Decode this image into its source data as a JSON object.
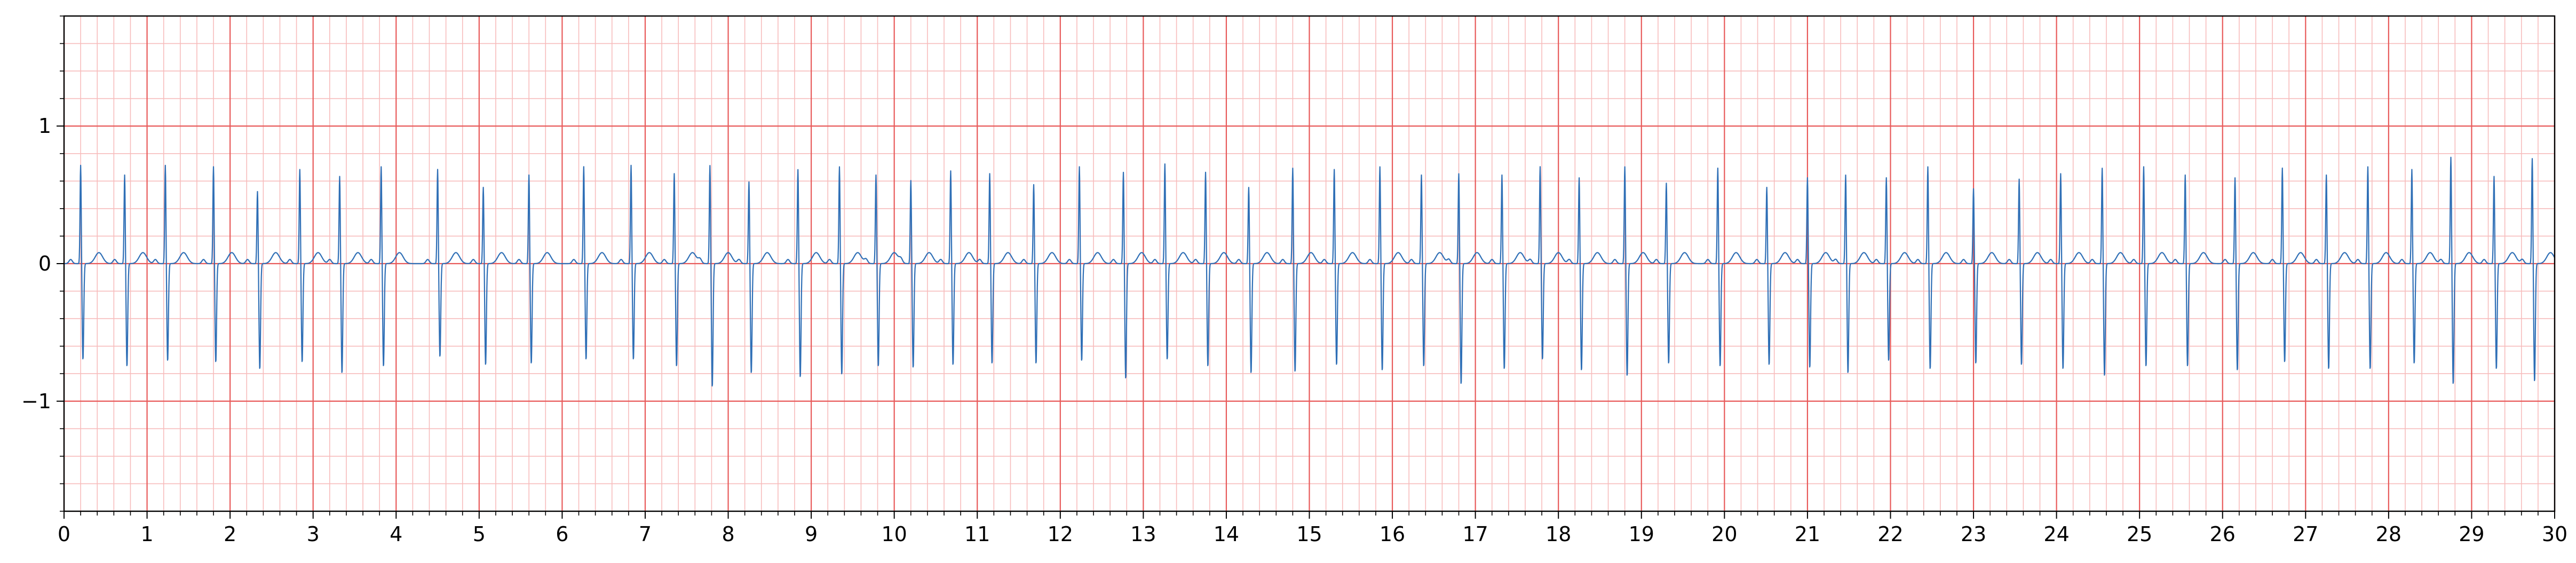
{
  "chart_data": {
    "type": "line",
    "title": "",
    "xlabel": "",
    "ylabel": "",
    "xlim": [
      0,
      30
    ],
    "ylim": [
      -1.8,
      1.8
    ],
    "x_ticks": [
      0,
      1,
      2,
      3,
      4,
      5,
      6,
      7,
      8,
      9,
      10,
      11,
      12,
      13,
      14,
      15,
      16,
      17,
      18,
      19,
      20,
      21,
      22,
      23,
      24,
      25,
      26,
      27,
      28,
      29,
      30
    ],
    "x_tick_labels": [
      "0",
      "1",
      "2",
      "3",
      "4",
      "5",
      "6",
      "7",
      "8",
      "9",
      "10",
      "11",
      "12",
      "13",
      "14",
      "15",
      "16",
      "17",
      "18",
      "19",
      "20",
      "21",
      "22",
      "23",
      "24",
      "25",
      "26",
      "27",
      "28",
      "29",
      "30"
    ],
    "y_ticks": [
      -1,
      0,
      1
    ],
    "y_tick_labels": [
      "−1",
      "0",
      "1"
    ],
    "grid": true,
    "grid_major_x": 1.0,
    "grid_major_y": 1.0,
    "grid_minor_x": 0.2,
    "grid_minor_y": 0.2,
    "series": [
      {
        "beat_times": [
          0.2,
          0.73,
          1.22,
          1.8,
          2.33,
          2.84,
          3.32,
          3.82,
          4.5,
          5.05,
          5.6,
          6.26,
          6.83,
          7.35,
          7.78,
          8.25,
          8.84,
          9.34,
          9.78,
          10.2,
          10.68,
          11.15,
          11.68,
          12.23,
          12.76,
          13.26,
          13.75,
          14.27,
          14.8,
          15.3,
          15.85,
          16.35,
          16.8,
          17.32,
          17.78,
          18.25,
          18.8,
          19.3,
          19.92,
          20.51,
          21.0,
          21.46,
          21.95,
          22.45,
          23.0,
          23.55,
          24.05,
          24.55,
          25.05,
          25.55,
          26.15,
          26.72,
          27.25,
          27.75,
          28.28,
          28.75,
          29.27,
          29.73
        ],
        "r_amplitudes": [
          0.72,
          0.65,
          0.72,
          0.71,
          0.53,
          0.69,
          0.64,
          0.71,
          0.69,
          0.56,
          0.65,
          0.71,
          0.72,
          0.66,
          0.72,
          0.6,
          0.69,
          0.71,
          0.65,
          0.61,
          0.68,
          0.66,
          0.58,
          0.71,
          0.67,
          0.73,
          0.67,
          0.56,
          0.7,
          0.69,
          0.71,
          0.65,
          0.66,
          0.65,
          0.71,
          0.63,
          0.71,
          0.59,
          0.7,
          0.56,
          0.63,
          0.65,
          0.63,
          0.71,
          0.55,
          0.62,
          0.66,
          0.7,
          0.71,
          0.65,
          0.63,
          0.7,
          0.65,
          0.71,
          0.69,
          0.78,
          0.64,
          0.77
        ],
        "s_amplitudes": [
          -0.7,
          -0.75,
          -0.71,
          -0.72,
          -0.77,
          -0.72,
          -0.8,
          -0.75,
          -0.68,
          -0.74,
          -0.73,
          -0.7,
          -0.7,
          -0.75,
          -0.9,
          -0.8,
          -0.83,
          -0.81,
          -0.75,
          -0.76,
          -0.74,
          -0.73,
          -0.73,
          -0.71,
          -0.84,
          -0.7,
          -0.75,
          -0.8,
          -0.79,
          -0.74,
          -0.78,
          -0.75,
          -0.88,
          -0.77,
          -0.7,
          -0.78,
          -0.82,
          -0.73,
          -0.75,
          -0.74,
          -0.76,
          -0.8,
          -0.71,
          -0.77,
          -0.73,
          -0.74,
          -0.77,
          -0.82,
          -0.75,
          -0.75,
          -0.78,
          -0.72,
          -0.77,
          -0.77,
          -0.73,
          -0.88,
          -0.77,
          -0.86
        ],
        "t_amplitude": 0.08,
        "baseline": 0.0
      }
    ],
    "colors": {
      "signal": "#2f6fb6",
      "grid_major": "#e85a5a",
      "grid_minor": "#f7bcbc",
      "axis": "#000000",
      "background": "#ffffff"
    }
  }
}
